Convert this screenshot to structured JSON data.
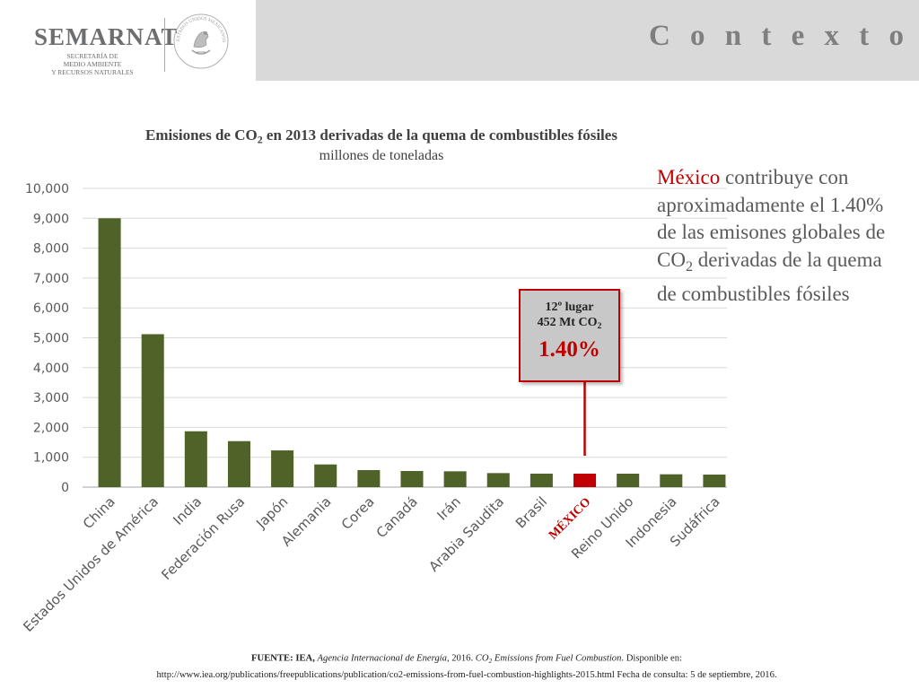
{
  "header": {
    "org_name": "SEMARNAT",
    "org_sub": [
      "SECRETARÍA DE",
      "MEDIO AMBIENTE",
      "Y RECURSOS NATURALES"
    ],
    "seal_icon": "mexico-coat-of-arms-icon",
    "seal_text": "ESTADOS UNIDOS MEXICANOS",
    "title": "C o n t e x t o"
  },
  "chart_data": {
    "type": "bar",
    "title_pre": "Emisiones de CO",
    "title_sub": "2",
    "title_post": " en 2013 derivadas de la quema de combustibles fósiles",
    "subtitle": "millones de toneladas",
    "categories": [
      "China",
      "Estados Unidos de América",
      "India",
      "Federación Rusa",
      "Japón",
      "Alemania",
      "Corea",
      "Canadá",
      "Irán",
      "Arabia Saudita",
      "Brasil",
      "MÉXICO",
      "Reino Unido",
      "Indonesia",
      "Sudáfrica"
    ],
    "values": [
      9000,
      5120,
      1870,
      1540,
      1230,
      760,
      570,
      540,
      530,
      470,
      452,
      452,
      450,
      430,
      420
    ],
    "highlight_index": 11,
    "ylim": [
      0,
      10000
    ],
    "yticks": [
      0,
      1000,
      2000,
      3000,
      4000,
      5000,
      6000,
      7000,
      8000,
      9000,
      10000
    ],
    "ytick_labels": [
      "0",
      "1,000",
      "2,000",
      "3,000",
      "4,000",
      "5,000",
      "6,000",
      "7,000",
      "8,000",
      "9,000",
      "10,000"
    ],
    "grid": true,
    "legend": "none",
    "bar_color": "#4f6228",
    "highlight_color": "#c00000"
  },
  "annotation": {
    "line1": "12º lugar",
    "line2_pre": "452 Mt CO",
    "line2_sub": "2",
    "percent": "1.40%"
  },
  "callout": {
    "highlight": "México",
    "line1_rest": " contribuye con",
    "line2": "aproximadamente el 1.40%",
    "line3": "de las emisones globales de",
    "line4_pre": "CO",
    "line4_sub": "2",
    "line4_post": " derivadas de la quema",
    "line5": "de combustibles fósiles"
  },
  "source": {
    "label": "FUENTE: IEA,",
    "agency": "Agencia Internacional de Energía",
    "year": ", 2016. ",
    "pub_pre": "CO",
    "pub_sub": "2",
    "pub_post": " Emissions from Fuel Combustion",
    "avail": ". Disponible en:",
    "url_line": "http://www.iea.org/publications/freepublications/publication/co2-emissions-from-fuel-combustion-highlights-2015.html Fecha de consulta: 5 de septiembre, 2016."
  },
  "colors": {
    "header_bar": "#d9d9d9",
    "accent_red": "#c00000",
    "title_gray": "#7f7f7f"
  }
}
